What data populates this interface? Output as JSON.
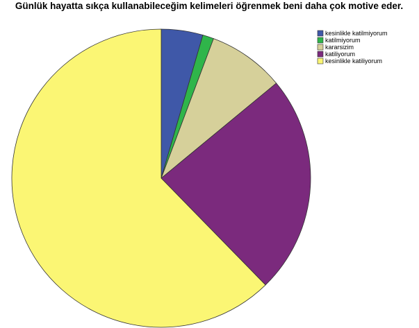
{
  "chart_data": {
    "type": "pie",
    "title": "Günlük hayatta sıkça kullanabileceğim kelimeleri öğrenmek beni daha çok motive eder.",
    "categories": [
      "kesinlikle katilmiyorum",
      "katilmiyorum",
      "kararsizim",
      "katiliyorum",
      "kesinlikle katiliyorum"
    ],
    "values": [
      4.5,
      1.2,
      8.3,
      23.7,
      62.3
    ],
    "colors": [
      "#3f58a8",
      "#2fb54a",
      "#d6d09a",
      "#7b2a7d",
      "#fbf674"
    ],
    "legend": "upper right"
  }
}
